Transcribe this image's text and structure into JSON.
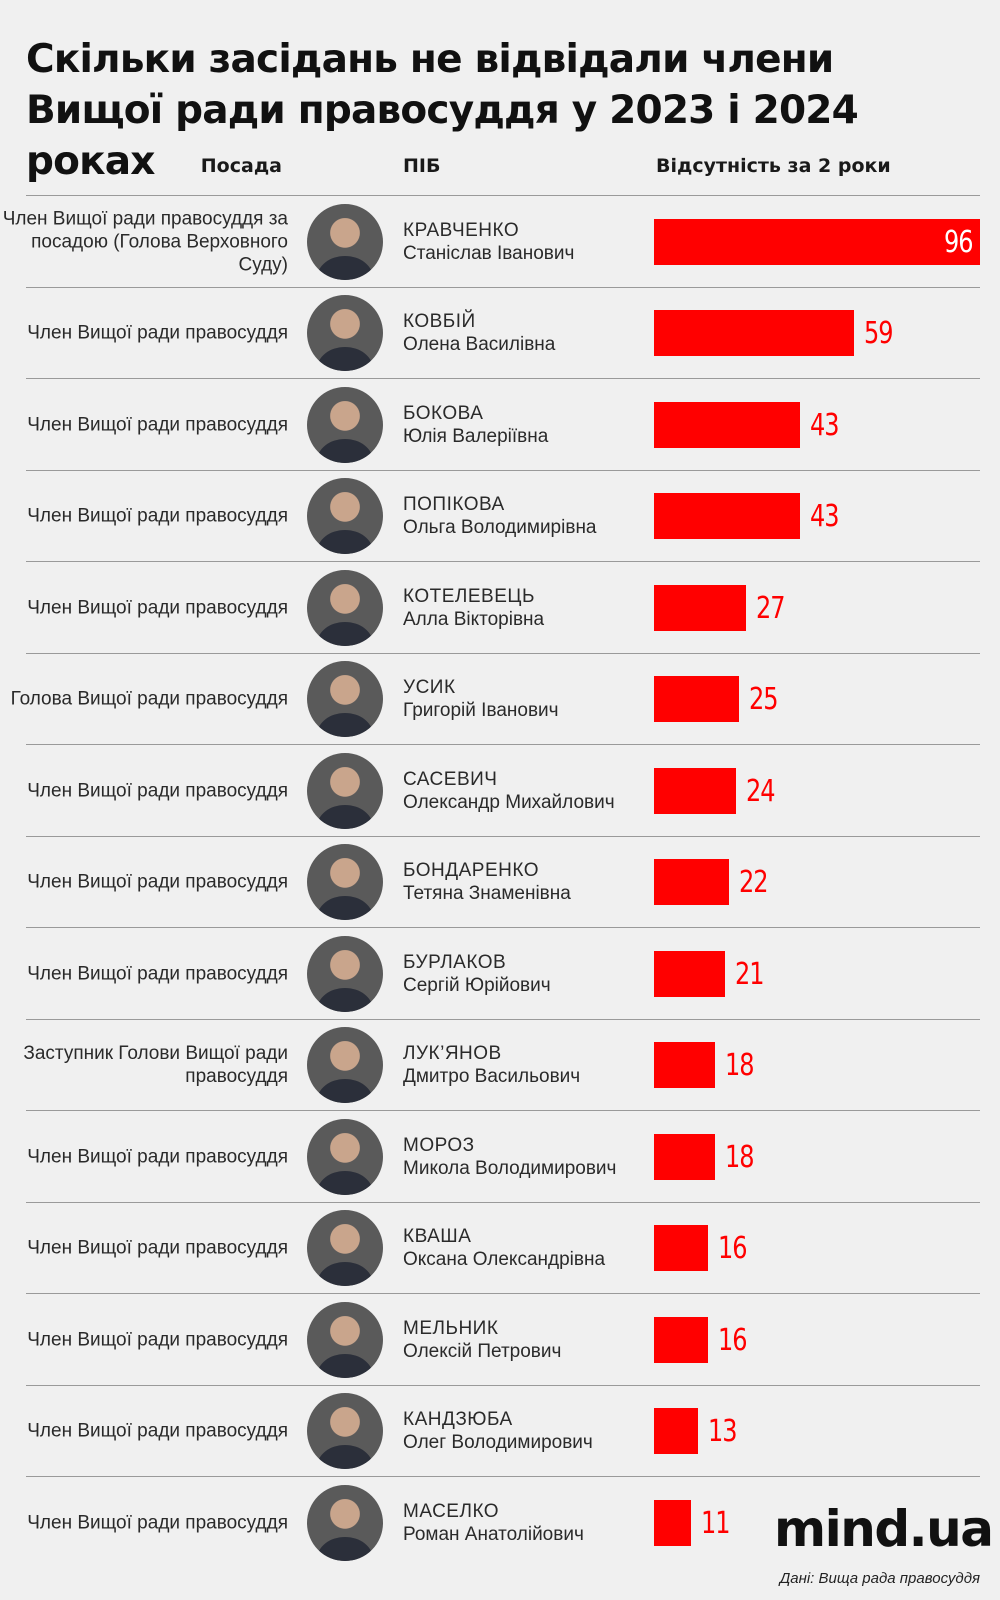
{
  "title": "Скільки засідань не відвідали члени Вищої ради правосуддя у 2023 і 2024 роках",
  "headers": {
    "position": "Посада",
    "name": "ПІБ",
    "absence": "Відсутність за 2 роки"
  },
  "colors": {
    "bar": "#ff0000",
    "background": "#f0f0f0"
  },
  "chart_data": {
    "type": "bar",
    "orientation": "horizontal",
    "title": "Скільки засідань не відвідали члени Вищої ради правосуддя у 2023 і 2024 роках",
    "value_header": "Відсутність за 2 роки",
    "categories": [
      "КРАВЧЕНКО Станіслав Іванович",
      "КОВБІЙ Олена Василівна",
      "БОКОВА Юлія Валеріївна",
      "ПОПІКОВА Ольга Володимирівна",
      "КОТЕЛЕВЕЦЬ Алла Вікторівна",
      "УСИК Григорій Іванович",
      "САСЕВИЧ Олександр Михайлович",
      "БОНДАРЕНКО Тетяна Знаменівна",
      "БУРЛАКОВ Сергій Юрійович",
      "ЛУК’ЯНОВ Дмитро Васильович",
      "МОРОЗ Микола Володимирович",
      "КВАША Оксана Олександрівна",
      "МЕЛЬНИК Олексій Петрович",
      "КАНДЗЮБА Олег Володимирович",
      "МАСЕЛКО Роман Анатолійович"
    ],
    "values": [
      96,
      59,
      43,
      43,
      27,
      25,
      24,
      22,
      21,
      18,
      18,
      16,
      16,
      13,
      11
    ],
    "xlim": [
      0,
      96
    ],
    "grid": false,
    "rows": [
      {
        "position": "Член Вищої ради правосуддя за посадою (Голова Верховного Суду)",
        "surname": "КРАВЧЕНКО",
        "given": "Станіслав Іванович",
        "value": 96
      },
      {
        "position": "Член Вищої ради правосуддя",
        "surname": "КОВБІЙ",
        "given": "Олена Василівна",
        "value": 59
      },
      {
        "position": "Член Вищої ради правосуддя",
        "surname": "БОКОВА",
        "given": "Юлія Валеріївна",
        "value": 43
      },
      {
        "position": "Член Вищої ради правосуддя",
        "surname": "ПОПІКОВА",
        "given": "Ольга Володимирівна",
        "value": 43
      },
      {
        "position": "Член Вищої ради правосуддя",
        "surname": "КОТЕЛЕВЕЦЬ",
        "given": "Алла Вікторівна",
        "value": 27
      },
      {
        "position": "Голова Вищої ради правосуддя",
        "surname": "УСИК",
        "given": "Григорій Іванович",
        "value": 25
      },
      {
        "position": "Член Вищої ради правосуддя",
        "surname": "САСЕВИЧ",
        "given": "Олександр Михайлович",
        "value": 24
      },
      {
        "position": "Член Вищої ради правосуддя",
        "surname": "БОНДАРЕНКО",
        "given": "Тетяна Знаменівна",
        "value": 22
      },
      {
        "position": "Член Вищої ради правосуддя",
        "surname": "БУРЛАКОВ",
        "given": "Сергій Юрійович",
        "value": 21
      },
      {
        "position": "Заступник Голови Вищої ради правосуддя",
        "surname": "ЛУК’ЯНОВ",
        "given": "Дмитро Васильович",
        "value": 18
      },
      {
        "position": "Член Вищої ради правосуддя",
        "surname": "МОРОЗ",
        "given": "Микола Володимирович",
        "value": 18
      },
      {
        "position": "Член Вищої ради правосуддя",
        "surname": "КВАША",
        "given": "Оксана Олександрівна",
        "value": 16
      },
      {
        "position": "Член Вищої ради правосуддя",
        "surname": "МЕЛЬНИК",
        "given": "Олексій Петрович",
        "value": 16
      },
      {
        "position": "Член Вищої ради правосуддя",
        "surname": "КАНДЗЮБА",
        "given": "Олег Володимирович",
        "value": 13
      },
      {
        "position": "Член Вищої ради правосуддя",
        "surname": "МАСЕЛКО",
        "given": "Роман Анатолійович",
        "value": 11
      }
    ]
  },
  "logo": "mind.ua",
  "source": "Дані: Вища рада правосуддя"
}
